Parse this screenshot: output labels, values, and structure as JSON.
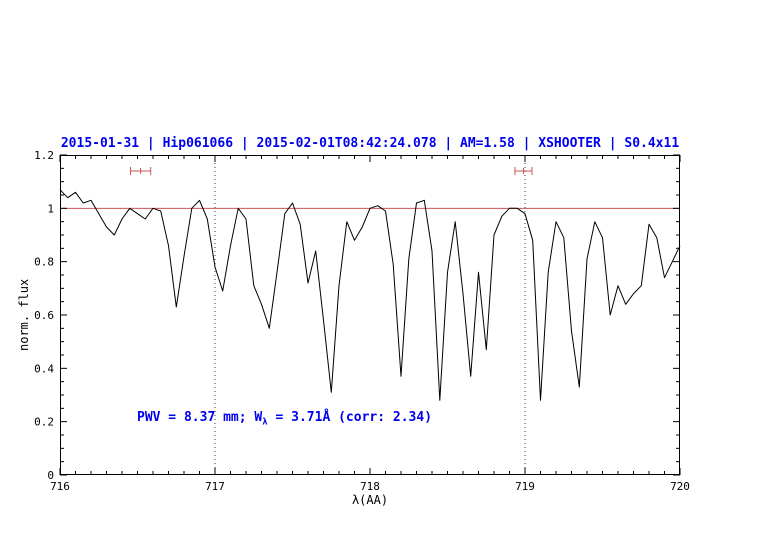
{
  "figure": {
    "annotation": {
      "prefix": "PWV = 8.37 mm; W",
      "sub": "λ",
      "suffix": " = 3.71Å (corr: 2.34)"
    }
  },
  "chart_data": {
    "type": "line",
    "title": "2015-01-31 | Hip061066 | 2015-02-01T08:42:24.078 | AM=1.58 | XSHOOTER | S0.4x11",
    "xlabel": "λ(AA)",
    "ylabel": "norm. flux",
    "xlim": [
      716,
      720
    ],
    "ylim": [
      0,
      1.2
    ],
    "grid": false,
    "legend": "none",
    "x_ticks": [
      716,
      717,
      718,
      719,
      720
    ],
    "x_tick_labels": [
      "716",
      "717",
      "718",
      "719",
      "720"
    ],
    "y_ticks": [
      0,
      0.2,
      0.4,
      0.6,
      0.8,
      1,
      1.2
    ],
    "y_tick_labels": [
      "0",
      "0.2",
      "0.4",
      "0.6",
      "0.8",
      "1",
      "1.2"
    ],
    "dotted_vlines": [
      717,
      719
    ],
    "reference_line": {
      "y": 1.0,
      "color": "#cc5555"
    },
    "range_markers": [
      {
        "x_center": 716.52,
        "half_width": 0.065,
        "y": 1.14,
        "color": "#cc5555"
      },
      {
        "x_center": 718.99,
        "half_width": 0.055,
        "y": 1.14,
        "color": "#cc5555"
      }
    ],
    "annotation_text": "PWV = 8.37 mm; W_λ = 3.71Å (corr: 2.34)",
    "title_color": "#0000ee",
    "annotation_color": "#0000ee",
    "series": [
      {
        "name": "spectrum",
        "color": "#000000",
        "x": [
          716,
          716.05,
          716.1,
          716.15,
          716.2,
          716.25,
          716.3,
          716.35,
          716.4,
          716.45,
          716.5,
          716.55,
          716.6,
          716.65,
          716.7,
          716.75,
          716.8,
          716.85,
          716.9,
          716.95,
          717,
          717.05,
          717.1,
          717.15,
          717.2,
          717.25,
          717.3,
          717.35,
          717.4,
          717.45,
          717.5,
          717.55,
          717.6,
          717.65,
          717.7,
          717.75,
          717.8,
          717.85,
          717.9,
          717.95,
          718,
          718.05,
          718.1,
          718.15,
          718.2,
          718.25,
          718.3,
          718.35,
          718.4,
          718.45,
          718.5,
          718.55,
          718.6,
          718.65,
          718.7,
          718.75,
          718.8,
          718.85,
          718.9,
          718.95,
          719,
          719.05,
          719.1,
          719.15,
          719.2,
          719.25,
          719.3,
          719.35,
          719.4,
          719.45,
          719.5,
          719.55,
          719.6,
          719.65,
          719.7,
          719.75,
          719.8,
          719.85,
          719.9,
          719.95,
          720
        ],
        "y": [
          1.07,
          1.04,
          1.06,
          1.02,
          1.03,
          0.98,
          0.93,
          0.9,
          0.96,
          1.0,
          0.98,
          0.96,
          1.0,
          0.99,
          0.86,
          0.63,
          0.82,
          1.0,
          1.03,
          0.96,
          0.78,
          0.69,
          0.86,
          1.0,
          0.96,
          0.71,
          0.64,
          0.55,
          0.76,
          0.98,
          1.02,
          0.94,
          0.72,
          0.84,
          0.58,
          0.31,
          0.71,
          0.95,
          0.88,
          0.93,
          1.0,
          1.01,
          0.99,
          0.79,
          0.37,
          0.81,
          1.02,
          1.03,
          0.84,
          0.28,
          0.76,
          0.95,
          0.68,
          0.37,
          0.76,
          0.47,
          0.9,
          0.97,
          1.0,
          1.0,
          0.98,
          0.88,
          0.28,
          0.76,
          0.95,
          0.89,
          0.54,
          0.33,
          0.81,
          0.95,
          0.89,
          0.6,
          0.71,
          0.64,
          0.68,
          0.71,
          0.94,
          0.89,
          0.74,
          0.8,
          0.86
        ]
      }
    ]
  }
}
